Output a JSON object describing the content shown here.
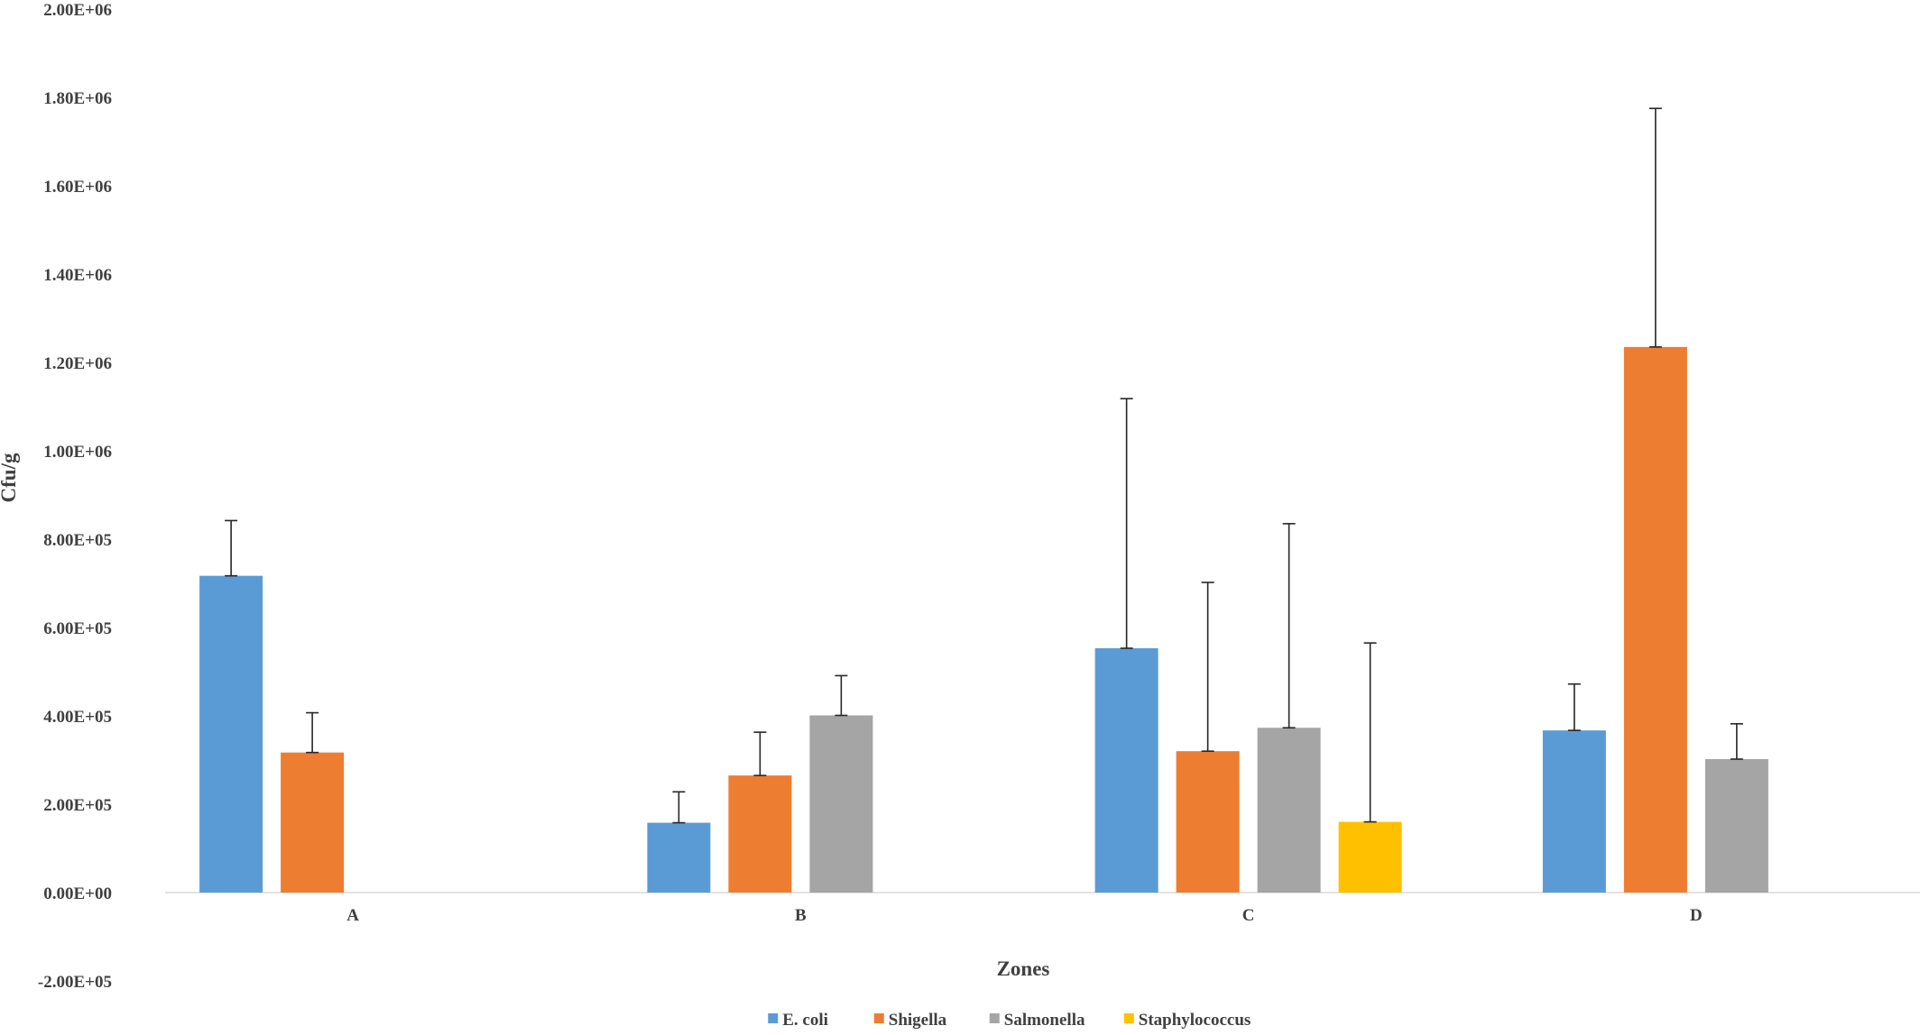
{
  "chart_data": {
    "type": "bar",
    "title": "",
    "xlabel": "Zones",
    "ylabel": "Cfu/g",
    "categories": [
      "A",
      "B",
      "C",
      "D"
    ],
    "ylim": [
      -200000,
      2000000
    ],
    "ytick_values": [
      -200000,
      0,
      200000,
      400000,
      600000,
      800000,
      1000000,
      1200000,
      1400000,
      1600000,
      1800000,
      2000000
    ],
    "ytick_labels": [
      "-2.00E+05",
      "0.00E+00",
      "2.00E+05",
      "4.00E+05",
      "6.00E+05",
      "8.00E+05",
      "1.00E+06",
      "1.20E+06",
      "1.40E+06",
      "1.60E+06",
      "1.80E+06",
      "2.00E+06"
    ],
    "grid": false,
    "legend_position": "bottom",
    "error_bars": "positive",
    "series": [
      {
        "name": "E. coli",
        "color": "#5B9BD5",
        "values": [
          717000,
          158000,
          553000,
          367000
        ],
        "errors": [
          125000,
          70000,
          565000,
          105000
        ]
      },
      {
        "name": "Shigella",
        "color": "#ED7D31",
        "values": [
          317000,
          265000,
          320000,
          1235000
        ],
        "errors": [
          90000,
          98000,
          382000,
          540000
        ]
      },
      {
        "name": "Salmonella",
        "color": "#A5A5A5",
        "values": [
          null,
          401000,
          373000,
          302000
        ],
        "errors": [
          null,
          90000,
          462000,
          80000
        ]
      },
      {
        "name": "Staphylococcus",
        "color": "#FFC000",
        "values": [
          null,
          null,
          160000,
          null
        ],
        "errors": [
          null,
          null,
          405000,
          null
        ]
      }
    ]
  }
}
